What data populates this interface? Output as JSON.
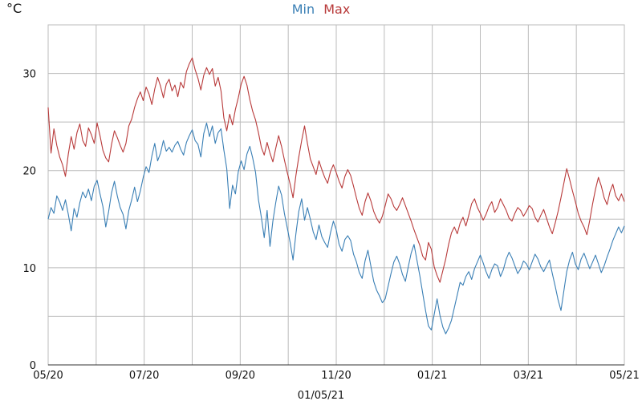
{
  "chart_data": {
    "type": "line",
    "title": "",
    "ylabel": "°C",
    "xlabel": "01/05/21",
    "ylim": [
      0,
      35
    ],
    "yticks": [
      0,
      10,
      20,
      30
    ],
    "x_tick_labels": [
      "05/20",
      "07/20",
      "09/20",
      "11/20",
      "01/21",
      "03/21",
      "05/21"
    ],
    "x_grid_count": 12,
    "grid": true,
    "legend": "top-center",
    "colors": {
      "min": "#3a7fb5",
      "max": "#b83a3a",
      "grid": "#bbbbbb"
    },
    "series": [
      {
        "name": "Min",
        "color": "#3a7fb5",
        "values": [
          15.0,
          16.2,
          15.6,
          17.4,
          16.8,
          15.9,
          17.0,
          15.5,
          13.8,
          16.1,
          15.2,
          16.7,
          17.8,
          17.2,
          18.1,
          16.9,
          18.4,
          19.0,
          17.6,
          16.3,
          14.2,
          15.8,
          17.7,
          18.9,
          17.4,
          16.2,
          15.5,
          14.0,
          15.9,
          17.0,
          18.3,
          16.8,
          17.9,
          19.3,
          20.4,
          19.8,
          21.5,
          22.8,
          21.0,
          21.8,
          23.1,
          22.0,
          22.4,
          21.9,
          22.6,
          23.0,
          22.2,
          21.6,
          22.9,
          23.6,
          24.2,
          23.1,
          22.7,
          21.4,
          23.8,
          24.9,
          23.5,
          24.6,
          22.8,
          23.9,
          24.3,
          22.1,
          20.2,
          16.1,
          18.5,
          17.6,
          19.9,
          21.0,
          20.1,
          21.7,
          22.5,
          21.3,
          19.8,
          17.0,
          15.2,
          13.1,
          15.9,
          12.2,
          14.8,
          16.7,
          18.4,
          17.5,
          15.6,
          14.1,
          12.6,
          10.8,
          13.5,
          15.8,
          17.1,
          14.9,
          16.2,
          15.0,
          13.7,
          12.9,
          14.4,
          13.2,
          12.6,
          12.1,
          13.6,
          14.8,
          13.9,
          12.4,
          11.7,
          12.9,
          13.3,
          12.8,
          11.4,
          10.6,
          9.5,
          8.9,
          10.7,
          11.8,
          10.2,
          8.6,
          7.7,
          7.1,
          6.4,
          6.8,
          8.1,
          9.4,
          10.6,
          11.2,
          10.4,
          9.3,
          8.6,
          10.1,
          11.5,
          12.4,
          10.8,
          9.2,
          7.4,
          5.6,
          4.0,
          3.6,
          5.2,
          6.8,
          5.1,
          3.9,
          3.2,
          3.8,
          4.6,
          5.9,
          7.2,
          8.5,
          8.2,
          9.1,
          9.6,
          8.8,
          9.9,
          10.6,
          11.3,
          10.5,
          9.6,
          8.9,
          9.8,
          10.4,
          10.2,
          9.1,
          9.8,
          10.9,
          11.6,
          11.0,
          10.2,
          9.4,
          9.9,
          10.7,
          10.4,
          9.8,
          10.6,
          11.4,
          10.9,
          10.1,
          9.6,
          10.2,
          10.8,
          9.4,
          8.1,
          6.7,
          5.6,
          7.6,
          9.6,
          10.8,
          11.6,
          10.4,
          9.8,
          10.9,
          11.5,
          10.7,
          9.9,
          10.6,
          11.3,
          10.4,
          9.5,
          10.2,
          11.1,
          11.9,
          12.8,
          13.5,
          14.2,
          13.6,
          14.3
        ]
      },
      {
        "name": "Max",
        "color": "#b83a3a",
        "values": [
          26.5,
          21.8,
          24.3,
          22.6,
          21.4,
          20.6,
          19.4,
          21.7,
          23.5,
          22.2,
          23.9,
          24.8,
          23.1,
          22.5,
          24.4,
          23.7,
          22.8,
          24.9,
          23.6,
          22.1,
          21.3,
          20.9,
          22.7,
          24.1,
          23.4,
          22.6,
          21.9,
          22.8,
          24.6,
          25.3,
          26.5,
          27.4,
          28.1,
          27.2,
          28.6,
          27.9,
          26.8,
          28.4,
          29.6,
          28.7,
          27.5,
          28.9,
          29.4,
          28.2,
          28.8,
          27.6,
          29.1,
          28.5,
          30.2,
          31.0,
          31.6,
          30.4,
          29.5,
          28.3,
          29.8,
          30.6,
          29.9,
          30.5,
          28.7,
          29.6,
          28.2,
          25.4,
          24.1,
          25.8,
          24.7,
          26.3,
          27.5,
          28.9,
          29.7,
          28.8,
          27.3,
          26.1,
          25.2,
          23.9,
          22.4,
          21.6,
          22.9,
          21.8,
          20.9,
          22.3,
          23.6,
          22.5,
          21.1,
          19.8,
          18.6,
          17.2,
          19.5,
          21.4,
          23.1,
          24.6,
          22.8,
          21.2,
          20.4,
          19.6,
          21.0,
          20.1,
          19.3,
          18.7,
          19.9,
          20.6,
          19.8,
          18.9,
          18.2,
          19.4,
          20.1,
          19.5,
          18.4,
          17.2,
          16.1,
          15.4,
          16.8,
          17.7,
          16.9,
          15.8,
          15.1,
          14.6,
          15.3,
          16.4,
          17.6,
          17.1,
          16.3,
          15.9,
          16.5,
          17.2,
          16.4,
          15.6,
          14.8,
          13.9,
          13.1,
          12.3,
          11.2,
          10.8,
          12.6,
          11.9,
          10.1,
          9.2,
          8.5,
          9.7,
          10.9,
          12.4,
          13.6,
          14.2,
          13.5,
          14.6,
          15.2,
          14.3,
          15.4,
          16.6,
          17.1,
          16.2,
          15.6,
          14.9,
          15.5,
          16.3,
          16.8,
          15.7,
          16.2,
          17.1,
          16.5,
          15.9,
          15.1,
          14.8,
          15.6,
          16.2,
          15.9,
          15.3,
          15.8,
          16.4,
          16.1,
          15.2,
          14.7,
          15.4,
          16.0,
          15.1,
          14.2,
          13.5,
          14.6,
          15.8,
          17.2,
          18.7,
          20.2,
          19.1,
          17.9,
          16.8,
          15.6,
          14.8,
          14.2,
          13.4,
          14.9,
          16.6,
          18.1,
          19.3,
          18.4,
          17.2,
          16.5,
          17.8,
          18.6,
          17.4,
          16.9,
          17.6,
          16.8
        ]
      }
    ]
  }
}
